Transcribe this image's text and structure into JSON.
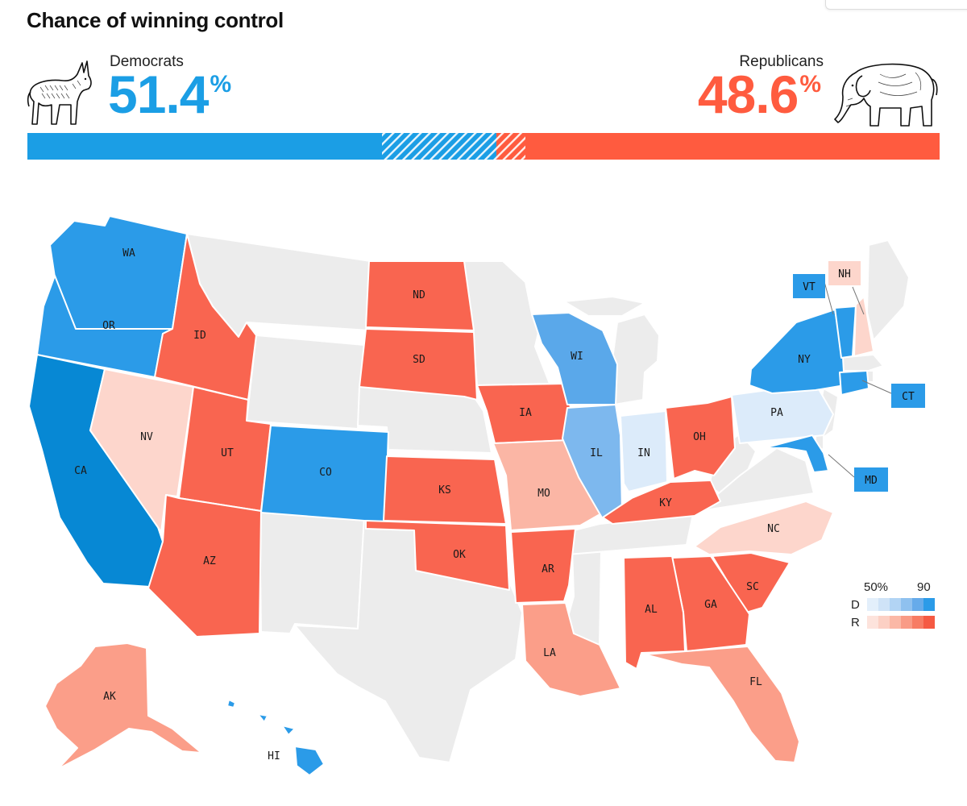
{
  "header": {
    "title": "Chance of winning control"
  },
  "democrats": {
    "label": "Democrats",
    "pct_number": "51.4",
    "pct_sign": "%",
    "chance": 51.4,
    "color": "#1b9ee5"
  },
  "republicans": {
    "label": "Republicans",
    "pct_number": "48.6",
    "pct_sign": "%",
    "chance": 48.6,
    "color": "#ff5b3f"
  },
  "map": {
    "states": [
      {
        "abbr": "WA",
        "party": "D",
        "tier": "strong"
      },
      {
        "abbr": "OR",
        "party": "D",
        "tier": "strong"
      },
      {
        "abbr": "CA",
        "party": "D",
        "tier": "solid"
      },
      {
        "abbr": "NV",
        "party": "R",
        "tier": "tossup"
      },
      {
        "abbr": "ID",
        "party": "R",
        "tier": "strong"
      },
      {
        "abbr": "UT",
        "party": "R",
        "tier": "strong"
      },
      {
        "abbr": "AZ",
        "party": "R",
        "tier": "strong"
      },
      {
        "abbr": "CO",
        "party": "D",
        "tier": "strong"
      },
      {
        "abbr": "ND",
        "party": "R",
        "tier": "strong"
      },
      {
        "abbr": "SD",
        "party": "R",
        "tier": "strong"
      },
      {
        "abbr": "KS",
        "party": "R",
        "tier": "strong"
      },
      {
        "abbr": "OK",
        "party": "R",
        "tier": "strong"
      },
      {
        "abbr": "IA",
        "party": "R",
        "tier": "strong"
      },
      {
        "abbr": "MO",
        "party": "R",
        "tier": "lean"
      },
      {
        "abbr": "AR",
        "party": "R",
        "tier": "strong"
      },
      {
        "abbr": "LA",
        "party": "R",
        "tier": "likely"
      },
      {
        "abbr": "WI",
        "party": "D",
        "tier": "likely"
      },
      {
        "abbr": "IL",
        "party": "D",
        "tier": "lean"
      },
      {
        "abbr": "IN",
        "party": "D",
        "tier": "tossup"
      },
      {
        "abbr": "KY",
        "party": "R",
        "tier": "strong"
      },
      {
        "abbr": "OH",
        "party": "R",
        "tier": "strong"
      },
      {
        "abbr": "PA",
        "party": "D",
        "tier": "tossup"
      },
      {
        "abbr": "NY",
        "party": "D",
        "tier": "strong"
      },
      {
        "abbr": "VT",
        "party": "D",
        "tier": "strong"
      },
      {
        "abbr": "NH",
        "party": "R",
        "tier": "tossup"
      },
      {
        "abbr": "CT",
        "party": "D",
        "tier": "strong"
      },
      {
        "abbr": "MD",
        "party": "D",
        "tier": "strong"
      },
      {
        "abbr": "NC",
        "party": "R",
        "tier": "tossup"
      },
      {
        "abbr": "SC",
        "party": "R",
        "tier": "strong"
      },
      {
        "abbr": "GA",
        "party": "R",
        "tier": "strong"
      },
      {
        "abbr": "AL",
        "party": "R",
        "tier": "strong"
      },
      {
        "abbr": "FL",
        "party": "R",
        "tier": "likely"
      },
      {
        "abbr": "AK",
        "party": "R",
        "tier": "likely"
      },
      {
        "abbr": "HI",
        "party": "D",
        "tier": "strong"
      }
    ],
    "colors": {
      "no_race": "#ececec",
      "border": "#ffffff",
      "d_tossup": "#dcebfa",
      "d_lean": "#7db8ee",
      "d_likely": "#5aa8ea",
      "d_strong": "#2b9be8",
      "d_solid": "#0788d4",
      "r_tossup": "#fdd6cc",
      "r_lean": "#fbb6a5",
      "r_likely": "#fb9e89",
      "r_strong": "#f96550"
    }
  },
  "legend": {
    "low_label": "50%",
    "high_label": "90",
    "d_label": "D",
    "r_label": "R",
    "d_colors": [
      "#e3effb",
      "#cfe3f7",
      "#b2d4f4",
      "#8fc1ef",
      "#66abea",
      "#2b9be8"
    ],
    "r_colors": [
      "#fde3dc",
      "#fcd0c4",
      "#fbb8a6",
      "#f99b86",
      "#f77c64",
      "#f55a43"
    ]
  }
}
